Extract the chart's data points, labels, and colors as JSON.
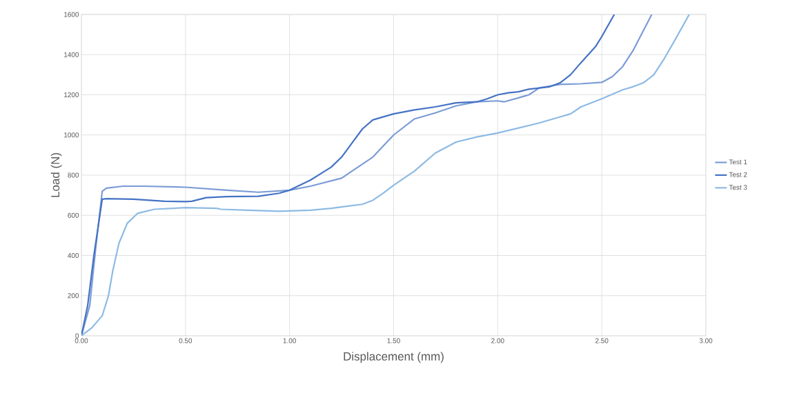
{
  "chart_data": {
    "type": "line",
    "xlabel": "Displacement (mm)",
    "ylabel": "Load (N)",
    "xlim": [
      0,
      3
    ],
    "ylim": [
      0,
      1600
    ],
    "xticks": [
      {
        "value": 0,
        "label": "0.00"
      },
      {
        "value": 0.5,
        "label": "0.50"
      },
      {
        "value": 1,
        "label": "1.00"
      },
      {
        "value": 1.5,
        "label": "1.50"
      },
      {
        "value": 2,
        "label": "2.00"
      },
      {
        "value": 2.5,
        "label": "2.50"
      },
      {
        "value": 3,
        "label": "3.00"
      }
    ],
    "yticks": [
      0,
      200,
      400,
      600,
      800,
      1000,
      1200,
      1400,
      1600
    ],
    "grid": true,
    "legend": "right",
    "marker": "none",
    "line_style": "solid",
    "series": [
      {
        "name": "Test 1",
        "color": "#7b9bd6",
        "x": [
          0,
          0.04,
          0.07,
          0.1,
          0.12,
          0.2,
          0.3,
          0.5,
          0.7,
          0.85,
          1.0,
          1.1,
          1.25,
          1.3,
          1.4,
          1.5,
          1.6,
          1.7,
          1.8,
          1.9,
          2.0,
          2.03,
          2.1,
          2.15,
          2.2,
          2.3,
          2.4,
          2.5,
          2.55,
          2.6,
          2.65,
          2.7,
          2.74
        ],
        "values": [
          0,
          150,
          450,
          720,
          735,
          745,
          745,
          740,
          725,
          715,
          725,
          745,
          785,
          820,
          890,
          1000,
          1080,
          1110,
          1145,
          1165,
          1170,
          1165,
          1185,
          1200,
          1235,
          1252,
          1255,
          1262,
          1290,
          1340,
          1420,
          1520,
          1600
        ]
      },
      {
        "name": "Test 2",
        "color": "#4472c4",
        "x": [
          0,
          0.03,
          0.06,
          0.1,
          0.12,
          0.25,
          0.4,
          0.5,
          0.53,
          0.6,
          0.7,
          0.85,
          0.95,
          1.0,
          1.1,
          1.2,
          1.25,
          1.3,
          1.35,
          1.4,
          1.5,
          1.6,
          1.7,
          1.8,
          1.9,
          1.95,
          2.0,
          2.05,
          2.1,
          2.15,
          2.25,
          2.3,
          2.35,
          2.4,
          2.47,
          2.5,
          2.56
        ],
        "values": [
          0,
          150,
          400,
          680,
          683,
          680,
          670,
          668,
          670,
          688,
          693,
          695,
          710,
          725,
          775,
          840,
          890,
          960,
          1030,
          1075,
          1105,
          1125,
          1140,
          1160,
          1165,
          1180,
          1200,
          1210,
          1215,
          1228,
          1240,
          1260,
          1300,
          1360,
          1440,
          1490,
          1600
        ]
      },
      {
        "name": "Test 3",
        "color": "#8cbae4",
        "x": [
          0,
          0.05,
          0.1,
          0.13,
          0.15,
          0.18,
          0.22,
          0.27,
          0.35,
          0.5,
          0.65,
          0.67,
          0.8,
          0.95,
          1.1,
          1.2,
          1.35,
          1.4,
          1.45,
          1.5,
          1.6,
          1.7,
          1.8,
          1.9,
          2.0,
          2.1,
          2.2,
          2.3,
          2.35,
          2.4,
          2.5,
          2.6,
          2.65,
          2.7,
          2.75,
          2.8,
          2.85,
          2.92
        ],
        "values": [
          0,
          40,
          100,
          200,
          320,
          460,
          560,
          610,
          630,
          638,
          635,
          630,
          625,
          620,
          625,
          635,
          655,
          675,
          710,
          750,
          820,
          910,
          965,
          990,
          1010,
          1035,
          1060,
          1090,
          1105,
          1140,
          1180,
          1225,
          1240,
          1260,
          1300,
          1380,
          1470,
          1600
        ]
      }
    ]
  }
}
